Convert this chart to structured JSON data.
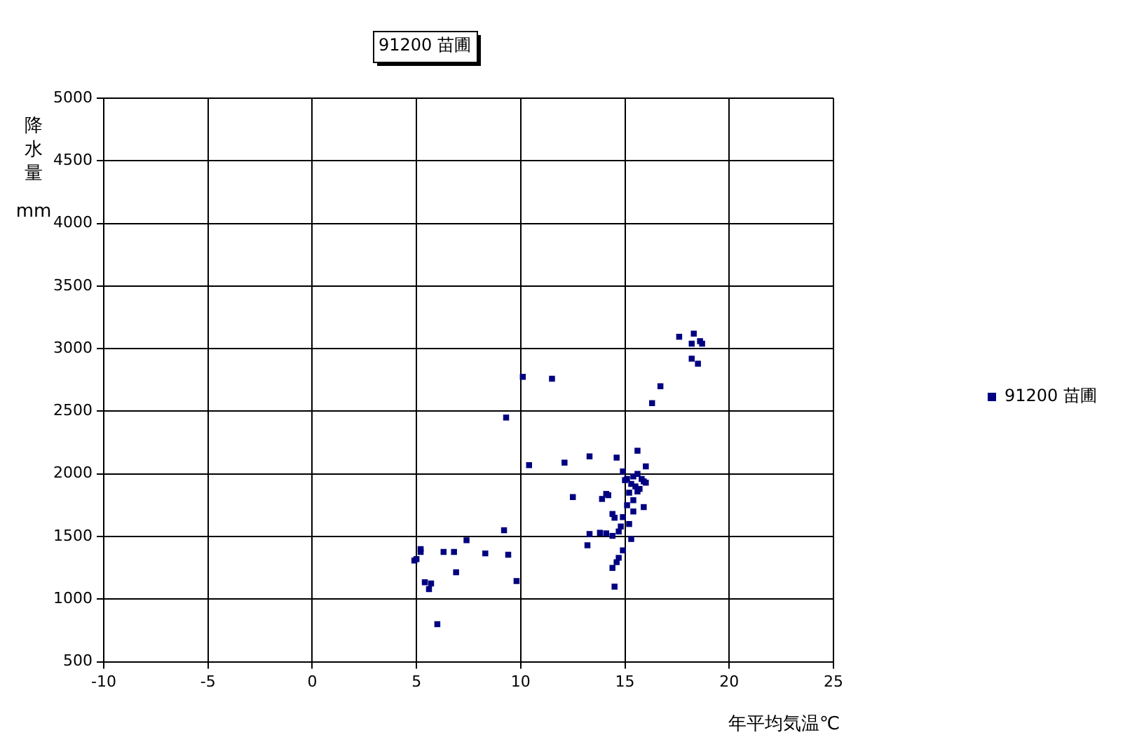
{
  "chart_data": {
    "type": "scatter",
    "title": "91200 苗圃",
    "xlabel": "年平均気温℃",
    "ylabel": "降水量 mm",
    "xlim": [
      -10,
      25
    ],
    "xticks": [
      -10,
      -5,
      0,
      5,
      10,
      15,
      20,
      25
    ],
    "ylim": [
      500,
      5000
    ],
    "yticks": [
      500,
      1000,
      1500,
      2000,
      2500,
      3000,
      3500,
      4000,
      4500,
      5000
    ],
    "grid": true,
    "legend": "right",
    "marker": "square",
    "series": [
      {
        "name": "91200 苗圃",
        "color": "#000080",
        "x": [
          4.9,
          5.2,
          5.2,
          5.0,
          5.4,
          5.7,
          5.6,
          6.0,
          6.3,
          6.8,
          6.9,
          7.4,
          8.3,
          9.2,
          9.3,
          9.4,
          9.8,
          10.1,
          10.4,
          11.5,
          12.1,
          12.5,
          13.3,
          13.2,
          13.3,
          13.8,
          13.9,
          14.1,
          14.6,
          15.6,
          14.9,
          16.0,
          15.1,
          15.3,
          15.5,
          15.7,
          15.9,
          15.2,
          15.4,
          15.6,
          15.8,
          15.4,
          15.9,
          14.2,
          14.4,
          14.9,
          15.2,
          14.5,
          14.1,
          14.7,
          15.3,
          14.4,
          14.9,
          14.7,
          14.6,
          14.4,
          14.5,
          17.6,
          18.3,
          18.2,
          18.6,
          18.7,
          18.2,
          18.5,
          16.7,
          16.3,
          15.0,
          15.1,
          14.8,
          15.4,
          15.6,
          16.0
        ],
        "values": [
          1308,
          1377,
          1400,
          1320,
          1135,
          1125,
          1080,
          800,
          1377,
          1377,
          1215,
          1470,
          1365,
          1550,
          2450,
          1355,
          1145,
          2775,
          2070,
          2760,
          2090,
          1815,
          2140,
          1430,
          1520,
          1530,
          1800,
          1840,
          2130,
          2185,
          2020,
          2060,
          1960,
          1920,
          1900,
          1880,
          1940,
          1850,
          1980,
          2000,
          1960,
          1790,
          1735,
          1830,
          1680,
          1655,
          1600,
          1650,
          1525,
          1540,
          1480,
          1505,
          1390,
          1330,
          1295,
          1250,
          1100,
          3095,
          3120,
          3040,
          3060,
          3040,
          2920,
          2880,
          2700,
          2565,
          1950,
          1750,
          1580,
          1700,
          1860,
          1930
        ]
      }
    ]
  }
}
